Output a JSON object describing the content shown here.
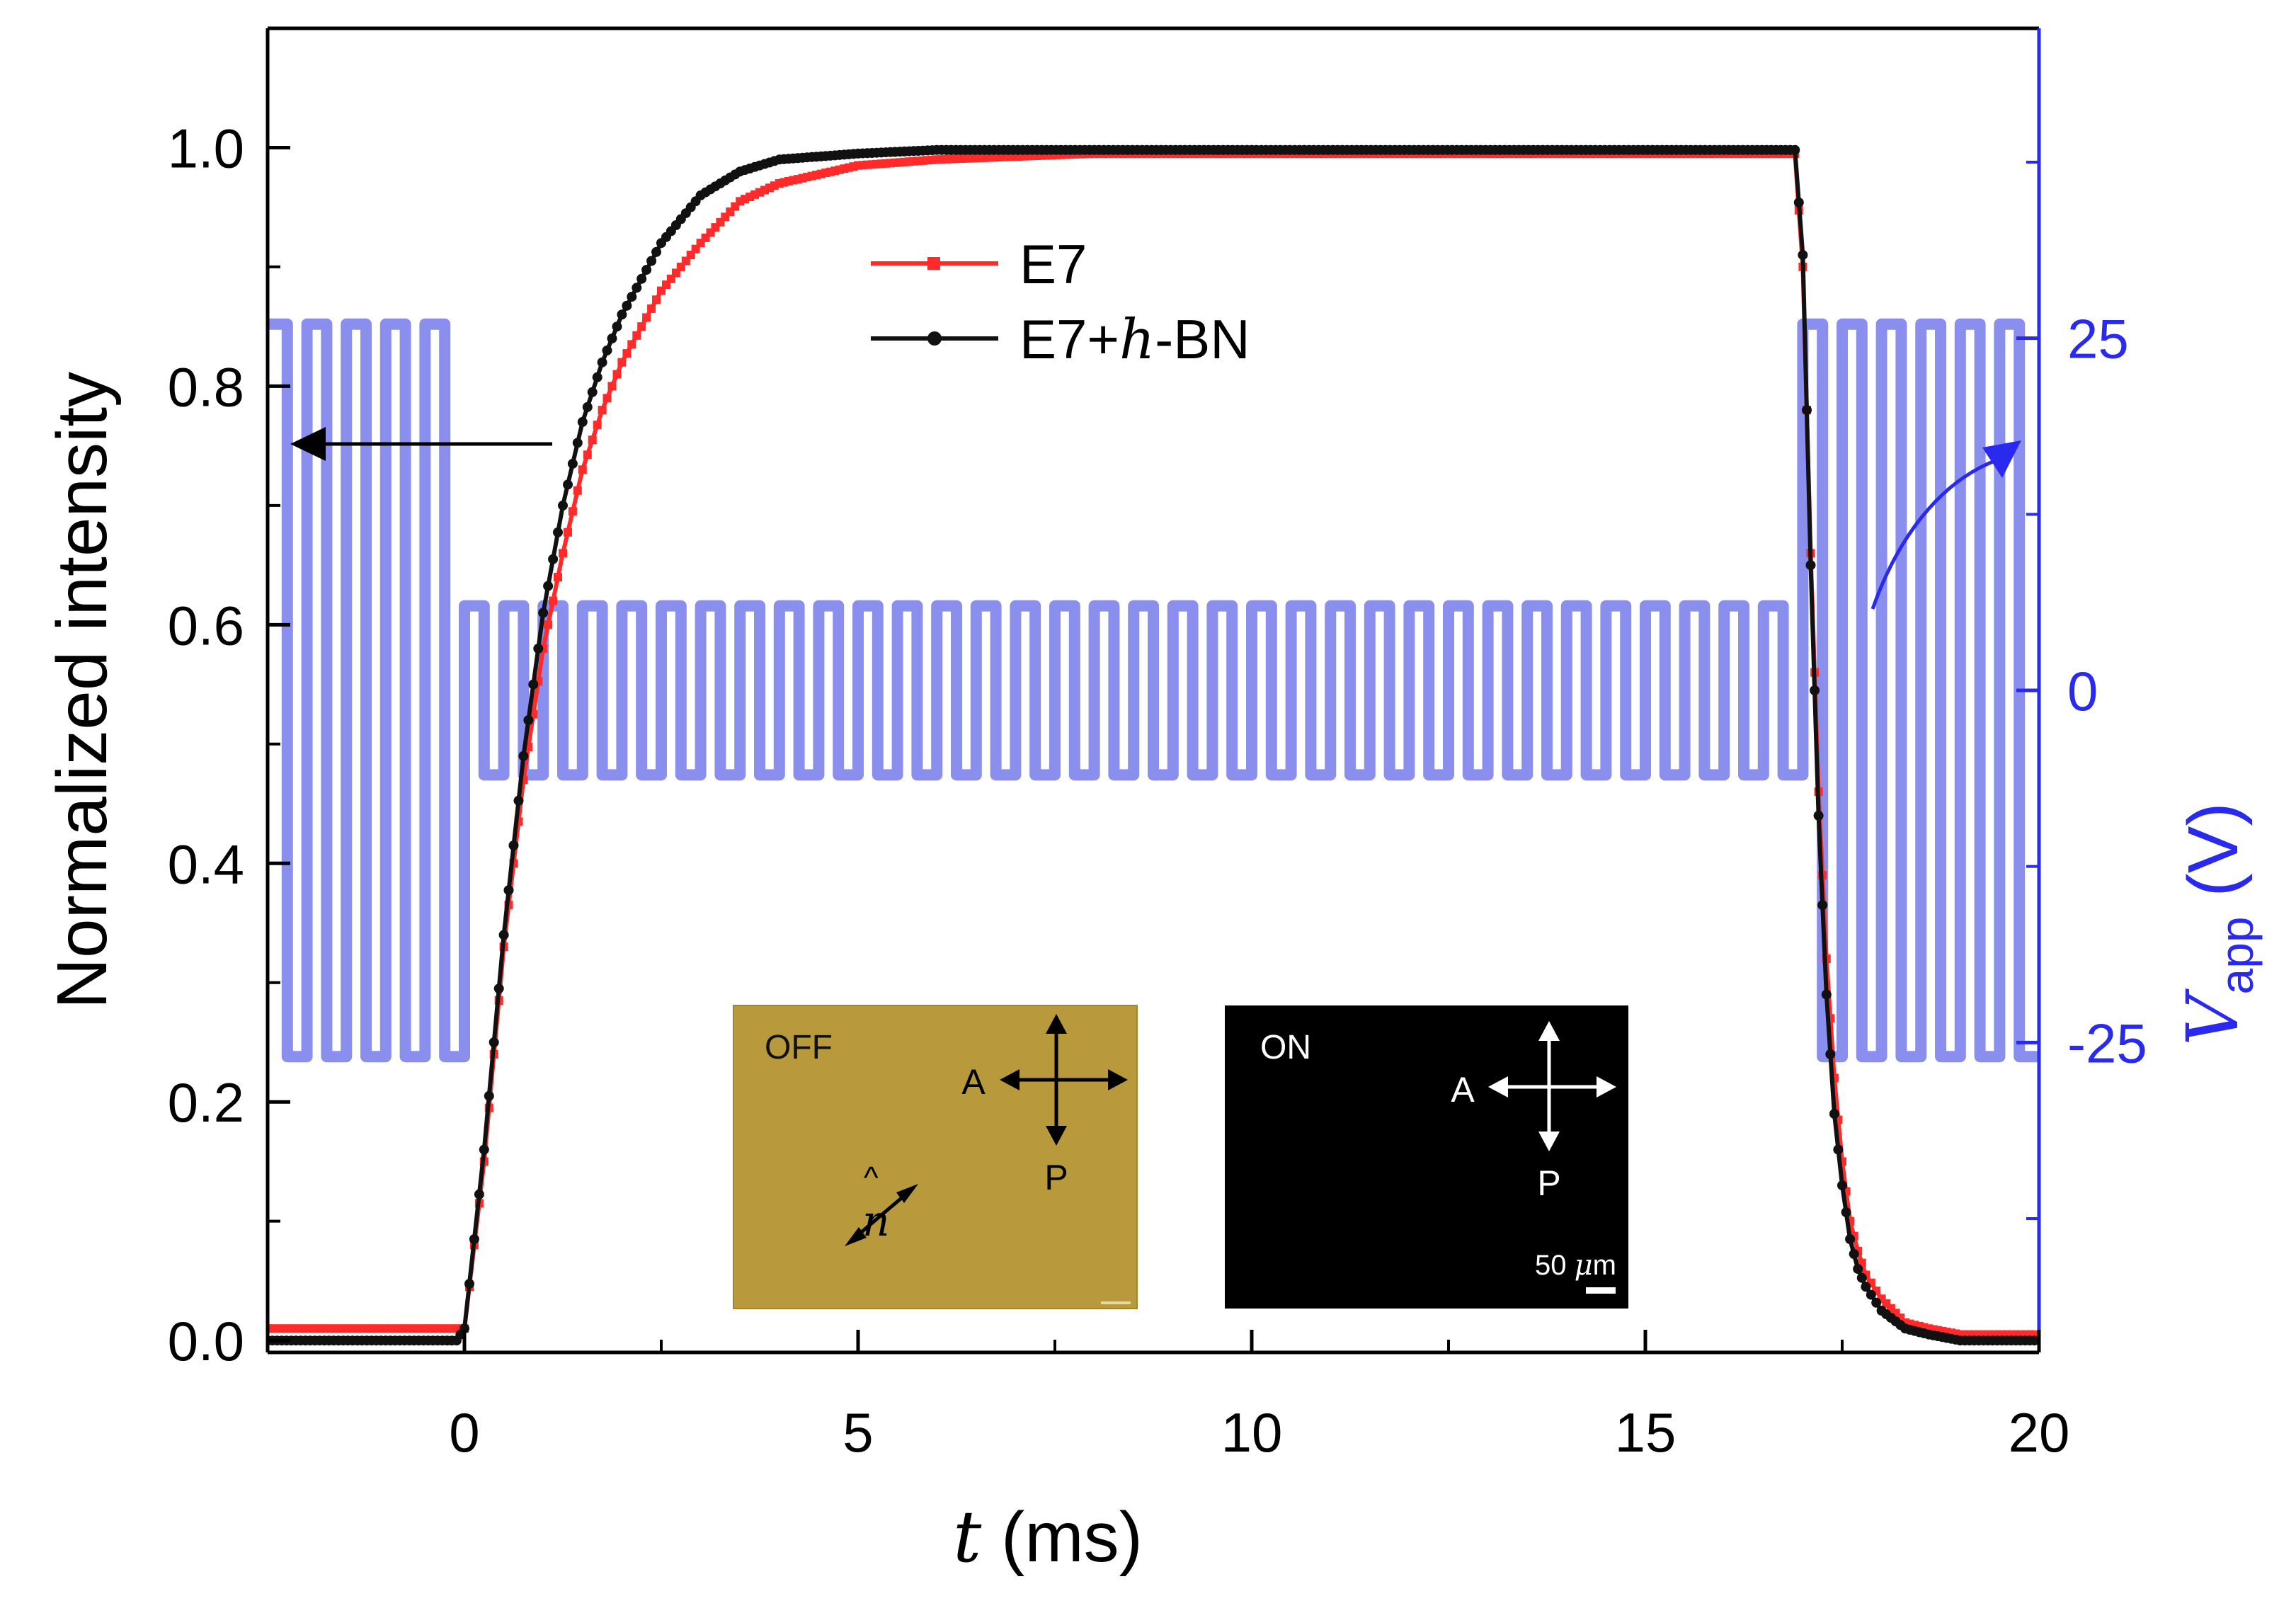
{
  "chart_data": {
    "type": "line",
    "title": "",
    "xlabel": {
      "italic": "t",
      "rest": " (ms)"
    },
    "ylabel": "Normalized intensity",
    "y2label": {
      "main": "V",
      "sub": "app",
      "rest": " (V)"
    },
    "xlim": [
      -2.5,
      20
    ],
    "ylim": [
      -0.01,
      1.1
    ],
    "y2lim": [
      -47,
      47
    ],
    "xticks": [
      0,
      5,
      10,
      15,
      20
    ],
    "xtick_labels": [
      "0",
      "5",
      "10",
      "15",
      "20"
    ],
    "yticks": [
      0.0,
      0.2,
      0.4,
      0.6,
      0.8,
      1.0
    ],
    "ytick_labels": [
      "0.0",
      "0.2",
      "0.4",
      "0.6",
      "0.8",
      "1.0"
    ],
    "y2ticks": [
      25,
      0,
      -25
    ],
    "y2tick_labels": [
      "25",
      "0",
      "-25"
    ],
    "legend": {
      "position": "top-center",
      "entries": [
        {
          "name": "E7",
          "prefix": "E7",
          "italic": "",
          "suffix": "",
          "color": "#ff2a2a"
        },
        {
          "name": "E7+h-BN",
          "prefix": "E7+",
          "italic": "h",
          "suffix": "-BN",
          "color": "#111111"
        }
      ]
    },
    "series": [
      {
        "name": "E7",
        "axis": "left",
        "color": "#ff2a2a",
        "x": [
          -2.5,
          -0.1,
          0,
          0.25,
          0.5,
          0.75,
          1.0,
          1.25,
          1.5,
          1.75,
          2.0,
          2.5,
          3.0,
          3.5,
          4.0,
          5.0,
          6.0,
          8.0,
          10.0,
          12.0,
          14.0,
          16.0,
          16.9,
          17.0,
          17.1,
          17.2,
          17.3,
          17.4,
          17.5,
          17.6,
          17.7,
          17.8,
          18.0,
          18.3,
          18.6,
          19.0,
          20.0
        ],
        "values": [
          0.01,
          0.01,
          0.01,
          0.15,
          0.33,
          0.47,
          0.58,
          0.66,
          0.73,
          0.78,
          0.82,
          0.88,
          0.92,
          0.955,
          0.97,
          0.985,
          0.99,
          0.995,
          0.995,
          0.995,
          0.995,
          0.995,
          0.995,
          0.9,
          0.66,
          0.46,
          0.32,
          0.22,
          0.15,
          0.1,
          0.075,
          0.055,
          0.035,
          0.015,
          0.01,
          0.005,
          0.005
        ]
      },
      {
        "name": "E7+h-BN",
        "axis": "left",
        "color": "#111111",
        "x": [
          -2.5,
          -0.1,
          0,
          0.25,
          0.5,
          0.75,
          1.0,
          1.25,
          1.5,
          1.75,
          2.0,
          2.5,
          3.0,
          3.5,
          4.0,
          5.0,
          6.0,
          8.0,
          10.0,
          12.0,
          14.0,
          16.0,
          16.9,
          17.0,
          17.1,
          17.2,
          17.3,
          17.4,
          17.5,
          17.6,
          17.7,
          17.8,
          18.0,
          18.3,
          18.6,
          19.0,
          20.0
        ],
        "values": [
          0.0,
          0.0,
          0.01,
          0.16,
          0.34,
          0.49,
          0.61,
          0.7,
          0.77,
          0.82,
          0.86,
          0.92,
          0.96,
          0.98,
          0.99,
          0.995,
          0.998,
          0.998,
          0.998,
          0.998,
          0.998,
          0.998,
          0.998,
          0.91,
          0.65,
          0.44,
          0.29,
          0.19,
          0.13,
          0.085,
          0.06,
          0.045,
          0.025,
          0.01,
          0.005,
          0.0,
          0.0
        ]
      },
      {
        "name": "V_app",
        "axis": "right",
        "color": "#8a8fee",
        "description_free": true,
        "segments": [
          {
            "t_start": -2.5,
            "t_end": 0.0,
            "period_ms": 0.5,
            "amplitude_v": 26
          },
          {
            "t_start": 0.0,
            "t_end": 17.0,
            "period_ms": 0.5,
            "amplitude_v": 6
          },
          {
            "t_start": 17.0,
            "t_end": 20.0,
            "period_ms": 0.5,
            "amplitude_v": 26
          }
        ]
      }
    ],
    "annotations": [
      {
        "type": "arrow",
        "direction": "left",
        "meaning": "intensity curves read on left axis"
      },
      {
        "type": "arrow",
        "direction": "up-right",
        "meaning": "voltage read on right axis"
      }
    ],
    "insets": [
      {
        "name": "off-state-micrograph",
        "label": "OFF",
        "background": "#b89a3c",
        "axis_a": "A",
        "axis_p": "P",
        "director_symbol": "n",
        "director_hat": "^"
      },
      {
        "name": "on-state-micrograph",
        "label": "ON",
        "background": "#000000",
        "axis_a": "A",
        "axis_p": "P",
        "scale_bar": {
          "value": "50",
          "unit_italic": "μ",
          "unit_rest": "m"
        }
      }
    ]
  }
}
